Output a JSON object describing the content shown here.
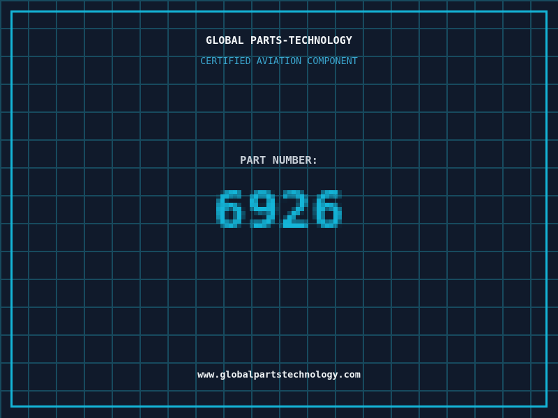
{
  "page": {
    "company_name": "GLOBAL PARTS-TECHNOLOGY",
    "tagline": "CERTIFIED AVIATION COMPONENT",
    "part_number_label": "PART NUMBER:",
    "part_number": "6926",
    "website": "www.globalpartstechnology.com"
  },
  "colors": {
    "background": "#101a2b",
    "grid_line": "#174a5e",
    "border_cyan": "#14b5d8",
    "part_number_cyan": "#14b5d8",
    "tagline_blue": "#3ba6cf",
    "title_white": "#f3f6f8",
    "label_gray": "#c7ced6",
    "footer_white": "#edf1f3"
  }
}
